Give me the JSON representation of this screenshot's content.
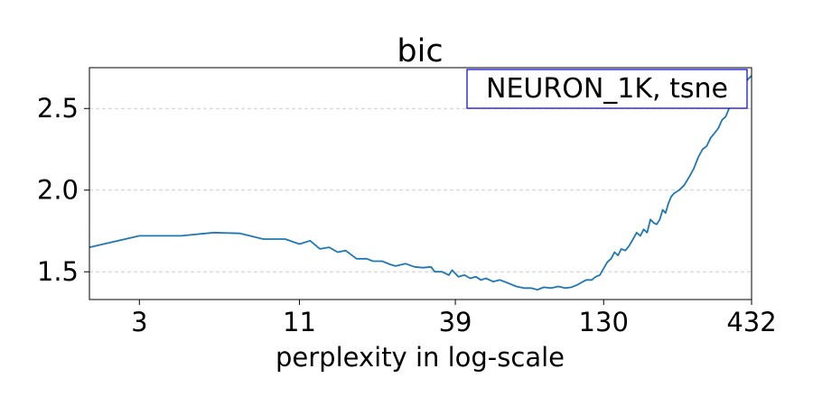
{
  "chart_data": {
    "type": "line",
    "title": "bic",
    "xlabel": "perplexity in log-scale",
    "ylabel": "",
    "x_scale": "log",
    "xlim": [
      2,
      432
    ],
    "ylim": [
      1.33,
      2.75
    ],
    "x_ticks": [
      3,
      11,
      39,
      130,
      432
    ],
    "x_tick_labels": [
      "3",
      "11",
      "39",
      "130",
      "432"
    ],
    "y_ticks": [
      1.5,
      2.0,
      2.5
    ],
    "y_tick_labels": [
      "1.5",
      "2.0",
      "2.5"
    ],
    "grid": "horizontal dashed",
    "legend_position": "top-right",
    "annotation": "NEURON_1K, tsne",
    "colors": {
      "line": "#1f77b4",
      "legend_border": "#0000cc",
      "grid": "#cccccc"
    },
    "series": [
      {
        "x": [
          2,
          3,
          4.2,
          5.5,
          6.8,
          8.2,
          9.8,
          11,
          12,
          13,
          14,
          15,
          16,
          17.5,
          19,
          20,
          21.5,
          23,
          24,
          26,
          28,
          30,
          32,
          33,
          35,
          37,
          38,
          40,
          42,
          44,
          46,
          48,
          50,
          53,
          56,
          60,
          64,
          68,
          72,
          76,
          80,
          85,
          90,
          95,
          100,
          105,
          110,
          113,
          118,
          122,
          126,
          130,
          134,
          138,
          142,
          146,
          150,
          155,
          160,
          165,
          170,
          175,
          180,
          185,
          190,
          195,
          200,
          205,
          210,
          215,
          220,
          225,
          230,
          240,
          250,
          260,
          270,
          280,
          290,
          300,
          310,
          320,
          330,
          340,
          350,
          360,
          370,
          380,
          390,
          400,
          410,
          420,
          432
        ],
        "y": [
          1.65,
          1.72,
          1.72,
          1.74,
          1.735,
          1.7,
          1.7,
          1.67,
          1.69,
          1.64,
          1.65,
          1.62,
          1.63,
          1.58,
          1.58,
          1.565,
          1.565,
          1.545,
          1.535,
          1.55,
          1.53,
          1.525,
          1.53,
          1.5,
          1.5,
          1.48,
          1.51,
          1.47,
          1.48,
          1.46,
          1.47,
          1.45,
          1.46,
          1.44,
          1.45,
          1.43,
          1.41,
          1.4,
          1.4,
          1.39,
          1.405,
          1.4,
          1.41,
          1.4,
          1.405,
          1.42,
          1.44,
          1.45,
          1.45,
          1.47,
          1.48,
          1.52,
          1.56,
          1.58,
          1.62,
          1.6,
          1.64,
          1.63,
          1.66,
          1.7,
          1.74,
          1.72,
          1.76,
          1.74,
          1.82,
          1.8,
          1.79,
          1.82,
          1.88,
          1.86,
          1.92,
          1.96,
          1.98,
          2.0,
          2.03,
          2.08,
          2.13,
          2.2,
          2.25,
          2.27,
          2.32,
          2.35,
          2.38,
          2.43,
          2.45,
          2.5,
          2.53,
          2.57,
          2.6,
          2.63,
          2.66,
          2.68,
          2.7
        ]
      }
    ]
  }
}
